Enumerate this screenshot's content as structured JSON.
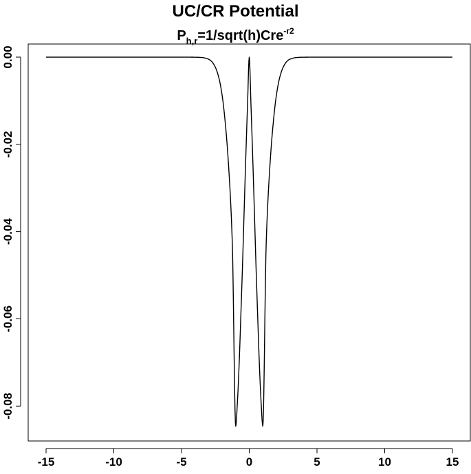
{
  "chart_data": {
    "type": "line",
    "title": "UC/CR Potential",
    "subtitle": {
      "base": "P",
      "subscript": "h,r",
      "middle": "=1/sqrt(h)Cre",
      "superscript": "-r2"
    },
    "xlabel": "",
    "ylabel": "",
    "xlim": [
      -15,
      15
    ],
    "ylim": [
      -0.088,
      0.003
    ],
    "x_ticks": [
      -15,
      -10,
      -5,
      0,
      5,
      10,
      15
    ],
    "x_tick_labels": [
      "-15",
      "-10",
      "-5",
      "0",
      "5",
      "10",
      "15"
    ],
    "y_ticks": [
      0.0,
      -0.02,
      -0.04,
      -0.06,
      -0.08
    ],
    "y_tick_labels": [
      "0.00",
      "-0.02",
      "-0.04",
      "-0.06",
      "-0.08"
    ],
    "grid": false,
    "legend": "none",
    "line_color": "#000000",
    "series": [
      {
        "x": [
          -15,
          -6,
          -4,
          -3.5,
          -3,
          -2.75,
          -2.5,
          -2.25,
          -2,
          -1.75,
          -1.5,
          -1.25,
          -1,
          -0.875,
          -0.75,
          -0.625,
          -0.5,
          -0.375,
          -0.25,
          -0.125,
          0,
          0.125,
          0.25,
          0.375,
          0.5,
          0.625,
          0.75,
          0.875,
          1,
          1.25,
          1.5,
          1.75,
          2,
          2.25,
          2.5,
          2.75,
          3,
          3.5,
          4,
          6,
          15
        ],
        "y": [
          0,
          0,
          -2e-05,
          -9e-05,
          -0.00048,
          -0.00108,
          -0.00234,
          -0.00465,
          -0.0088,
          -0.01577,
          -0.02617,
          -0.04278,
          -0.0846,
          -0.07915,
          -0.07069,
          -0.05963,
          -0.048,
          -0.035,
          -0.02237,
          -0.01074,
          0,
          -0.01074,
          -0.02237,
          -0.035,
          -0.048,
          -0.05963,
          -0.07069,
          -0.07915,
          -0.0846,
          -0.04278,
          -0.02617,
          -0.01577,
          -0.0088,
          -0.00465,
          -0.00234,
          -0.00108,
          -0.00048,
          -9e-05,
          -2e-05,
          0,
          0
        ]
      }
    ]
  }
}
